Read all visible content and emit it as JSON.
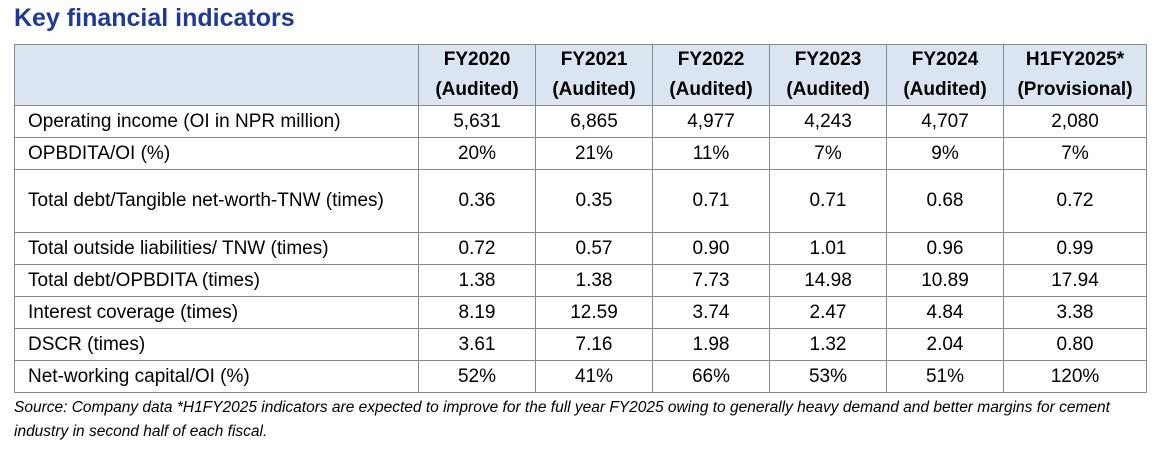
{
  "title": "Key financial indicators",
  "columns": [
    {
      "year": "FY2020",
      "status": "(Audited)"
    },
    {
      "year": "FY2021",
      "status": "(Audited)"
    },
    {
      "year": "FY2022",
      "status": "(Audited)"
    },
    {
      "year": "FY2023",
      "status": "(Audited)"
    },
    {
      "year": "FY2024",
      "status": "(Audited)"
    },
    {
      "year": "H1FY2025*",
      "status": "(Provisional)"
    }
  ],
  "rows": [
    {
      "label": "Operating income (OI in NPR million)",
      "values": [
        "5,631",
        "6,865",
        "4,977",
        "4,243",
        "4,707",
        "2,080"
      ]
    },
    {
      "label": "OPBDITA/OI (%)",
      "values": [
        "20%",
        "21%",
        "11%",
        "7%",
        "9%",
        "7%"
      ]
    },
    {
      "label": "Total debt/Tangible net-worth-TNW (times)",
      "values": [
        "0.36",
        "0.35",
        "0.71",
        "0.71",
        "0.68",
        "0.72"
      ]
    },
    {
      "label": "Total outside liabilities/ TNW (times)",
      "values": [
        "0.72",
        "0.57",
        "0.90",
        "1.01",
        "0.96",
        "0.99"
      ]
    },
    {
      "label": "Total debt/OPBDITA (times)",
      "values": [
        "1.38",
        "1.38",
        "7.73",
        "14.98",
        "10.89",
        "17.94"
      ]
    },
    {
      "label": "Interest coverage (times)",
      "values": [
        "8.19",
        "12.59",
        "3.74",
        "2.47",
        "4.84",
        "3.38"
      ]
    },
    {
      "label": "DSCR (times)",
      "values": [
        "3.61",
        "7.16",
        "1.98",
        "1.32",
        "2.04",
        "0.80"
      ]
    },
    {
      "label": "Net-working capital/OI (%)",
      "values": [
        "52%",
        "41%",
        "66%",
        "53%",
        "51%",
        "120%"
      ]
    }
  ],
  "source_note": "Source: Company data *H1FY2025 indicators are expected to improve for the full year FY2025 owing to generally heavy demand and better margins for cement industry in second half of each fiscal.",
  "colors": {
    "title": "#1f3a93",
    "header_bg": "#dbe5f1",
    "border": "#8a8a8a"
  }
}
